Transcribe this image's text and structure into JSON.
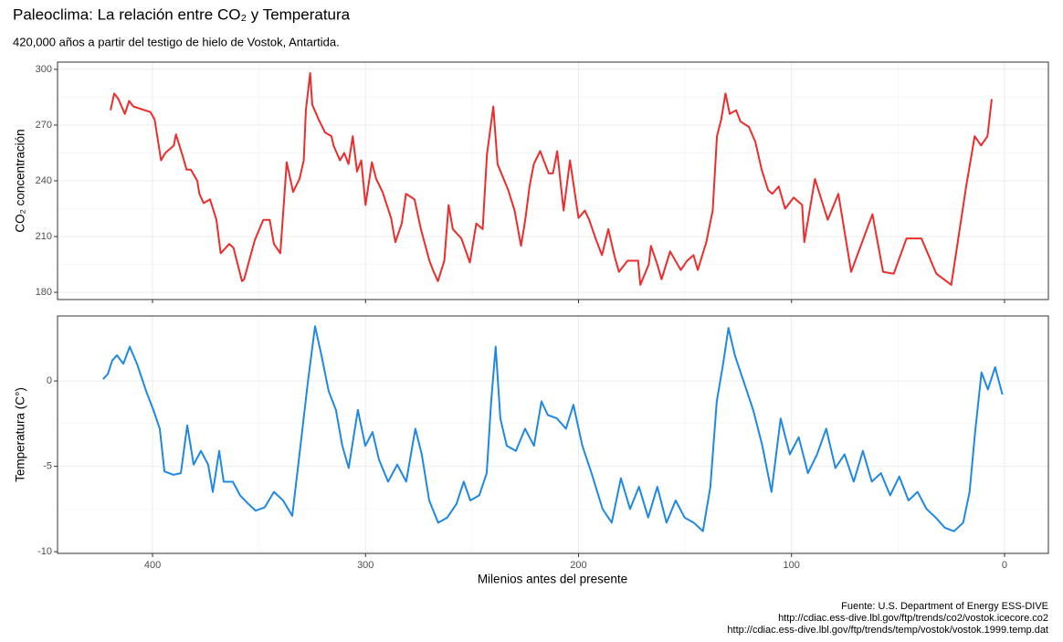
{
  "title": "Paleoclima: La relación entre CO₂ y Temperatura",
  "subtitle": "420,000 años a partir del testigo de hielo de Vostok, Antartida.",
  "xlabel": "Milenios antes del presente",
  "caption": [
    "Fuente: U.S. Department of Energy ESS-DIVE",
    "http://cdiac.ess-dive.lbl.gov/ftp/trends/co2/vostok.icecore.co2",
    "http://cdiac.ess-dive.lbl.gov/ftp/trends/temp/vostok/vostok.1999.temp.dat"
  ],
  "chart_data": [
    {
      "type": "line",
      "ylabel": "CO₂ concentración",
      "color": "#EE2C2C",
      "grid": true,
      "xlim": [
        444.6,
        -20.6
      ],
      "xticks": [
        400,
        300,
        200,
        100,
        0
      ],
      "ylim": [
        176.1,
        303.9
      ],
      "yticks": [
        180,
        210,
        240,
        270,
        300
      ],
      "x": [
        419.7,
        418,
        416,
        413,
        411,
        409,
        401,
        399,
        396,
        394,
        390,
        389,
        386,
        384,
        382,
        379,
        378,
        376,
        373,
        370,
        368,
        364,
        362,
        358,
        357,
        352,
        348,
        345,
        343,
        340,
        337,
        334,
        331,
        329,
        328,
        326,
        325,
        322,
        319,
        316,
        315,
        312,
        310,
        308,
        306,
        304,
        302,
        300,
        297,
        295,
        292,
        288,
        286,
        283,
        281,
        277,
        274,
        270,
        268,
        266,
        263,
        261,
        259,
        255,
        251,
        248,
        245,
        243,
        240,
        238,
        233,
        230,
        227,
        225,
        223,
        221,
        218,
        214,
        212,
        210,
        207,
        204,
        200,
        197,
        195,
        192,
        189,
        186,
        183,
        181,
        177,
        172,
        171,
        167,
        166,
        163,
        161,
        157,
        152,
        149,
        146,
        144,
        140,
        137,
        135,
        133,
        131,
        129,
        126,
        124,
        120,
        117,
        114,
        111,
        109,
        106,
        103,
        99,
        95,
        94,
        89,
        83,
        78,
        72,
        62,
        57,
        52,
        46,
        39,
        32,
        25,
        18,
        14,
        11,
        8,
        6
      ],
      "values": [
        278,
        287,
        284,
        276,
        283,
        280,
        277,
        273,
        251,
        255,
        259,
        265,
        254,
        246,
        246,
        240,
        233,
        228,
        230,
        219,
        201,
        206,
        204,
        186,
        187,
        208,
        219,
        219,
        206,
        201,
        250,
        234,
        241,
        251,
        278,
        298,
        281,
        273,
        266,
        264,
        259,
        251,
        255,
        249,
        264,
        245,
        251,
        227,
        250,
        241,
        234,
        220,
        207,
        217,
        233,
        230,
        214,
        197,
        191,
        186,
        197,
        227,
        214,
        209,
        196,
        217,
        214,
        254,
        280,
        249,
        235,
        224,
        205,
        219,
        237,
        249,
        256,
        244,
        244,
        256,
        224,
        251,
        220,
        224,
        219,
        209,
        200,
        214,
        199,
        191,
        197,
        197,
        184,
        195,
        205,
        195,
        187,
        202,
        192,
        197,
        200,
        192,
        207,
        224,
        264,
        273,
        287,
        276,
        278,
        272,
        269,
        261,
        246,
        235,
        233,
        237,
        225,
        231,
        227,
        207,
        241,
        219,
        233,
        191,
        222,
        191,
        190,
        209,
        209,
        190,
        184,
        237,
        264,
        259,
        264,
        284
      ]
    },
    {
      "type": "line",
      "ylabel": "Temperatura (C°)",
      "color": "#1E88E5",
      "grid": true,
      "xlim": [
        444.6,
        -20.6
      ],
      "xticks": [
        400,
        300,
        200,
        100,
        0
      ],
      "ylim": [
        -10.1,
        3.8
      ],
      "yticks": [
        -10,
        -5,
        0
      ],
      "x": [
        423.2,
        421,
        418.9,
        416.7,
        413.7,
        410.7,
        407.3,
        403,
        399.6,
        396.6,
        394.4,
        390.2,
        386.7,
        383.7,
        380.7,
        377.3,
        373.9,
        371.7,
        368.7,
        366.6,
        362.3,
        358.9,
        355,
        351.6,
        347.3,
        343,
        338.7,
        334.4,
        331,
        327.1,
        323.7,
        320.7,
        317.3,
        313.9,
        310.9,
        307.9,
        303.6,
        300.1,
        296.7,
        293.7,
        289.4,
        285.1,
        280.9,
        276.6,
        273.6,
        270.1,
        265.9,
        261.6,
        257.3,
        253.9,
        250.8,
        246.6,
        243.1,
        241,
        238.9,
        236.7,
        233.7,
        229.4,
        225.1,
        220.9,
        217.4,
        214.4,
        210.1,
        205.9,
        202.4,
        198.2,
        193.9,
        188.7,
        184.4,
        180.1,
        175.8,
        171.6,
        167.3,
        163,
        158.7,
        154.4,
        150.2,
        145.9,
        141.6,
        138.1,
        135.1,
        132.1,
        129.6,
        126.6,
        122.3,
        118,
        113.7,
        109.4,
        105.1,
        100.8,
        96.6,
        92.3,
        88,
        83.7,
        79.4,
        75.1,
        70.8,
        66.5,
        62.3,
        58,
        53.7,
        49.4,
        45.1,
        40.8,
        36.6,
        32.3,
        28,
        23.7,
        19.4,
        16.4,
        13.8,
        10.8,
        7.8,
        4.4,
        1.0
      ],
      "values": [
        0.1,
        0.4,
        1.2,
        1.5,
        1.0,
        2.0,
        1.0,
        -0.6,
        -1.7,
        -2.8,
        -5.3,
        -5.5,
        -5.4,
        -2.6,
        -4.9,
        -4.1,
        -4.9,
        -6.5,
        -4.1,
        -5.9,
        -5.9,
        -6.7,
        -7.2,
        -7.6,
        -7.4,
        -6.5,
        -7.0,
        -7.9,
        -4.3,
        -0.1,
        3.2,
        1.5,
        -0.6,
        -1.7,
        -3.8,
        -5.1,
        -1.7,
        -3.8,
        -3.0,
        -4.6,
        -5.9,
        -4.9,
        -5.9,
        -2.8,
        -4.3,
        -7.0,
        -8.3,
        -8.0,
        -7.2,
        -5.9,
        -7.0,
        -6.7,
        -5.4,
        -1.2,
        2.0,
        -2.2,
        -3.8,
        -4.1,
        -2.8,
        -3.8,
        -1.2,
        -2.0,
        -2.2,
        -2.8,
        -1.4,
        -3.8,
        -5.4,
        -7.5,
        -8.3,
        -5.7,
        -7.5,
        -6.2,
        -8.0,
        -6.2,
        -8.3,
        -7.0,
        -8.0,
        -8.3,
        -8.8,
        -6.2,
        -1.2,
        1.0,
        3.1,
        1.5,
        -0.1,
        -1.7,
        -3.8,
        -6.5,
        -2.2,
        -4.3,
        -3.3,
        -5.4,
        -4.3,
        -2.8,
        -5.1,
        -4.3,
        -5.9,
        -4.1,
        -5.9,
        -5.4,
        -6.7,
        -5.6,
        -7.0,
        -6.5,
        -7.5,
        -8.0,
        -8.6,
        -8.8,
        -8.3,
        -6.5,
        -3.0,
        0.5,
        -0.5,
        0.8,
        -0.8
      ]
    }
  ]
}
